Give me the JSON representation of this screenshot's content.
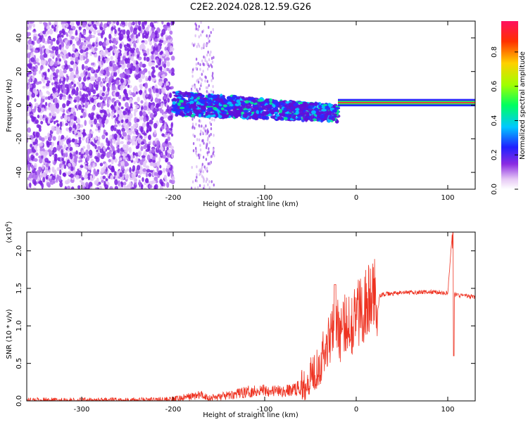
{
  "title": "C2E2.2024.028.12.59.G26",
  "chart_data": [
    {
      "type": "heatmap",
      "xlabel": "Height of straight line (km)",
      "ylabel": "Frequency (Hz)",
      "xlim": [
        -360,
        130
      ],
      "ylim": [
        -50,
        50
      ],
      "x_ticks": [
        -300,
        -200,
        -100,
        0,
        100
      ],
      "y_ticks": [
        -40,
        -20,
        0,
        20,
        40
      ],
      "colorbar": {
        "label": "Normalized spectral amplitude",
        "range": [
          0.0,
          1.0
        ],
        "ticks": [
          "0.0",
          "0.2",
          "0.4",
          "0.6",
          "0.8"
        ],
        "colormap": [
          "#ffffff",
          "#e6c8f5",
          "#8a2be2",
          "#2020ff",
          "#00c8ff",
          "#00ff60",
          "#a0ff00",
          "#ffd000",
          "#ff3000",
          "#ff1060"
        ]
      },
      "description_features": {
        "noise_region_x": [
          -360,
          -200
        ],
        "gap_x": [
          -195,
          -155
        ],
        "band_x": [
          -200,
          -20
        ],
        "tone_x": [
          -20,
          130
        ],
        "tone_frequency": 1.5
      }
    },
    {
      "type": "line",
      "xlabel": "Height of straight line (km)",
      "ylabel": "SNR (10 * v/v)",
      "y_multiplier": "(x10",
      "y_exponent": "4",
      "xlim": [
        -360,
        130
      ],
      "ylim": [
        0.0,
        2.25
      ],
      "x_ticks": [
        -300,
        -200,
        -100,
        0,
        100
      ],
      "y_ticks": [
        "0.0",
        "0.5",
        "1.0",
        "1.5",
        "2.0"
      ],
      "color": "#ee3322",
      "series": [
        {
          "x": [
            -360,
            -300,
            -250,
            -200,
            -180,
            -170,
            -160,
            -140,
            -120,
            -100,
            -80,
            -60,
            -50,
            -40,
            -30,
            -25,
            -20,
            -15,
            -10,
            -5,
            0,
            10,
            20,
            30,
            50,
            70,
            90,
            100,
            105,
            106,
            107,
            110,
            120,
            130
          ],
          "values": [
            0.01,
            0.01,
            0.01,
            0.02,
            0.06,
            0.08,
            0.04,
            0.07,
            0.12,
            0.15,
            0.12,
            0.18,
            0.35,
            0.5,
            0.8,
            1.15,
            0.95,
            0.9,
            1.1,
            1.05,
            1.15,
            1.3,
            1.38,
            1.42,
            1.44,
            1.45,
            1.45,
            1.43,
            2.25,
            0.6,
            1.42,
            1.41,
            1.4,
            1.38
          ]
        }
      ]
    }
  ]
}
